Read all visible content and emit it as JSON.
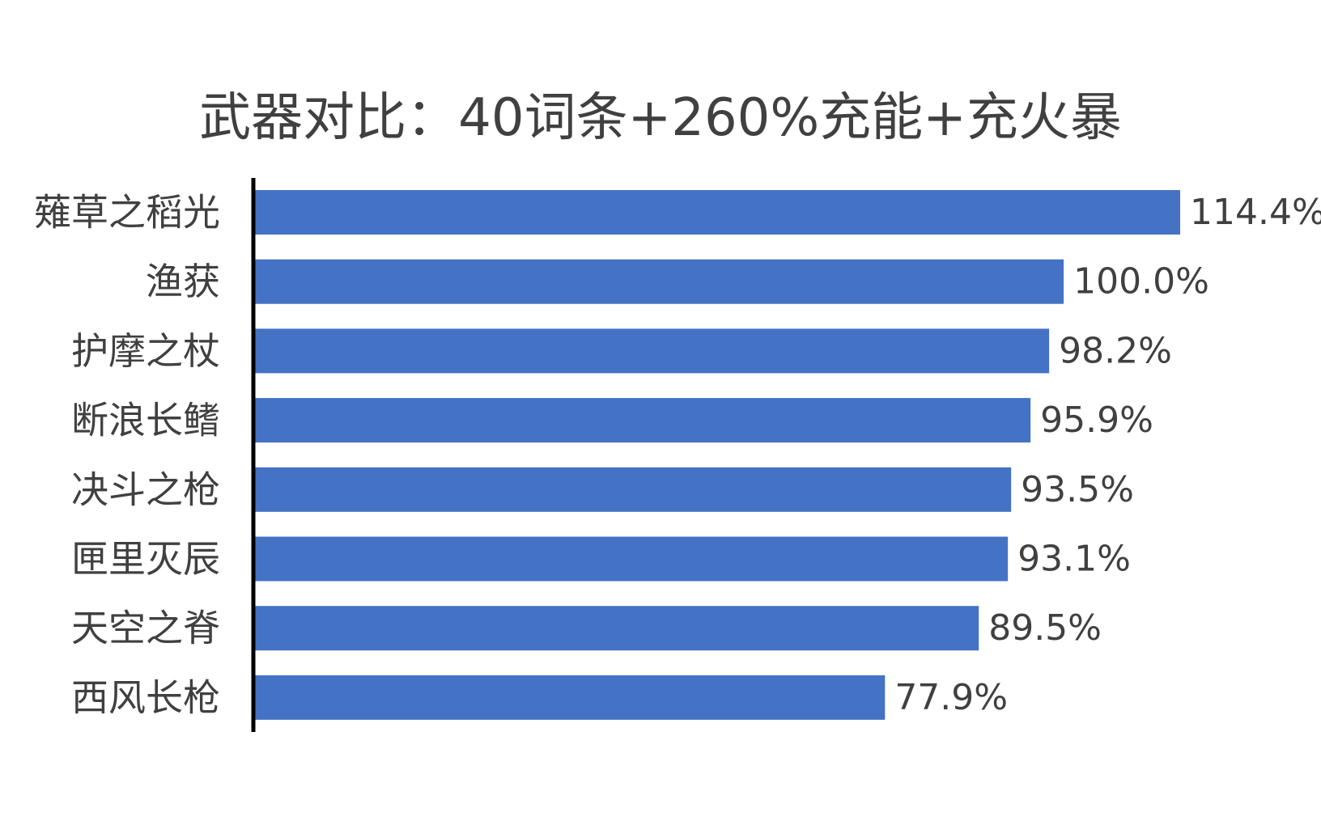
{
  "chart_data": {
    "type": "bar",
    "orientation": "horizontal",
    "title": "武器对比：40词条+260%充能+充火暴",
    "categories": [
      "薙草之稻光",
      "渔获",
      "护摩之杖",
      "断浪长鳍",
      "决斗之枪",
      "匣里灭辰",
      "天空之脊",
      "西风长枪"
    ],
    "values": [
      114.4,
      100.0,
      98.2,
      95.9,
      93.5,
      93.1,
      89.5,
      77.9
    ],
    "data_labels": [
      "114.4%",
      "100.0%",
      "98.2%",
      "95.9%",
      "93.5%",
      "93.1%",
      "89.5%",
      "77.9%"
    ],
    "value_unit": "%",
    "xlim": [
      0,
      114.4
    ],
    "grid": false,
    "legend": "none",
    "bar_color": "#4472C4",
    "axis_color": "#000000",
    "text_color": "#404040"
  }
}
